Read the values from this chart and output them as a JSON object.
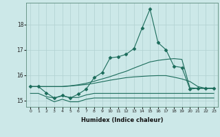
{
  "xlabel": "Humidex (Indice chaleur)",
  "ylabel": "",
  "bg_color": "#cce8e8",
  "grid_color": "#b0d0d0",
  "line_color": "#1a6b5a",
  "xlim": [
    -0.5,
    23.5
  ],
  "ylim": [
    14.75,
    18.85
  ],
  "yticks": [
    15,
    16,
    17,
    18
  ],
  "xticks": [
    0,
    1,
    2,
    3,
    4,
    5,
    6,
    7,
    8,
    9,
    10,
    11,
    12,
    13,
    14,
    15,
    16,
    17,
    18,
    19,
    20,
    21,
    22,
    23
  ],
  "lines": [
    {
      "x": [
        0,
        1,
        2,
        3,
        4,
        5,
        6,
        7,
        8,
        9,
        10,
        11,
        12,
        13,
        14,
        15,
        16,
        17,
        18,
        19,
        20,
        21,
        22,
        23
      ],
      "y": [
        15.55,
        15.55,
        15.3,
        15.1,
        15.2,
        15.1,
        15.25,
        15.45,
        15.9,
        16.1,
        16.68,
        16.72,
        16.82,
        17.05,
        17.85,
        18.6,
        17.28,
        17.0,
        16.35,
        16.3,
        15.45,
        15.48,
        15.48,
        15.48
      ],
      "marker": "D",
      "markersize": 2.5
    },
    {
      "x": [
        0,
        1,
        2,
        3,
        4,
        5,
        6,
        7,
        8,
        9,
        10,
        11,
        12,
        13,
        14,
        15,
        16,
        17,
        18,
        19,
        20,
        21,
        22,
        23
      ],
      "y": [
        15.55,
        15.55,
        15.55,
        15.55,
        15.55,
        15.58,
        15.62,
        15.68,
        15.76,
        15.85,
        15.94,
        16.05,
        16.15,
        16.28,
        16.4,
        16.52,
        16.58,
        16.62,
        16.65,
        16.62,
        15.5,
        15.48,
        15.48,
        15.48
      ],
      "marker": null,
      "markersize": 0
    },
    {
      "x": [
        0,
        1,
        2,
        3,
        4,
        5,
        6,
        7,
        8,
        9,
        10,
        11,
        12,
        13,
        14,
        15,
        16,
        17,
        18,
        19,
        20,
        21,
        22,
        23
      ],
      "y": [
        15.55,
        15.55,
        15.55,
        15.55,
        15.55,
        15.57,
        15.6,
        15.63,
        15.68,
        15.74,
        15.8,
        15.85,
        15.9,
        15.93,
        15.95,
        15.97,
        15.98,
        15.98,
        15.92,
        15.85,
        15.75,
        15.55,
        15.48,
        15.48
      ],
      "marker": null,
      "markersize": 0
    },
    {
      "x": [
        0,
        1,
        2,
        3,
        4,
        5,
        6,
        7,
        8,
        9,
        10,
        11,
        12,
        13,
        14,
        15,
        16,
        17,
        18,
        19,
        20,
        21,
        22,
        23
      ],
      "y": [
        15.28,
        15.28,
        15.15,
        15.1,
        15.18,
        15.12,
        15.12,
        15.22,
        15.28,
        15.28,
        15.28,
        15.28,
        15.28,
        15.28,
        15.28,
        15.28,
        15.28,
        15.28,
        15.28,
        15.28,
        15.28,
        15.28,
        15.28,
        15.28
      ],
      "marker": null,
      "markersize": 0
    },
    {
      "x": [
        2,
        3,
        4,
        5,
        6,
        7,
        8,
        9,
        10,
        11,
        12,
        13,
        14,
        15,
        16,
        17,
        18,
        19,
        20,
        21,
        22,
        23
      ],
      "y": [
        15.1,
        14.95,
        15.05,
        14.95,
        14.95,
        15.05,
        15.1,
        15.1,
        15.1,
        15.1,
        15.1,
        15.1,
        15.1,
        15.1,
        15.1,
        15.1,
        15.1,
        15.1,
        15.1,
        15.1,
        15.1,
        15.1
      ],
      "marker": null,
      "markersize": 0
    }
  ]
}
